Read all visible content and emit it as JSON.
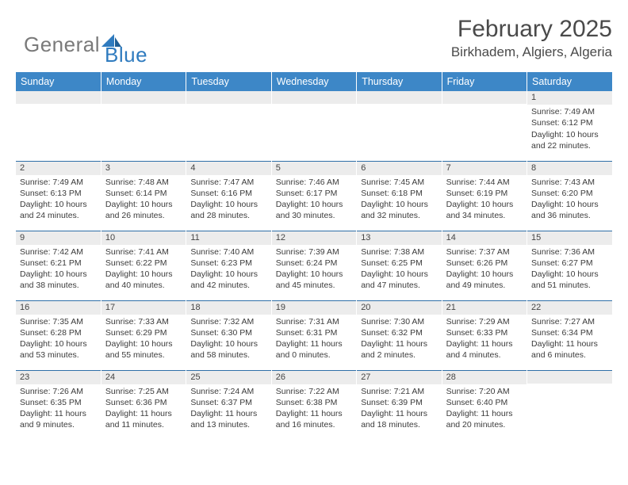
{
  "logo": {
    "text1": "General",
    "text2": "Blue"
  },
  "title": "February 2025",
  "location": "Birkhadem, Algiers, Algeria",
  "colors": {
    "header_bg": "#3d87c7",
    "header_text": "#ffffff",
    "row_border": "#2f6fa8",
    "daynum_bg": "#ececec",
    "body_text": "#3b3b3b",
    "logo_gray": "#7a7a7a",
    "logo_blue": "#2f7bbf"
  },
  "day_headers": [
    "Sunday",
    "Monday",
    "Tuesday",
    "Wednesday",
    "Thursday",
    "Friday",
    "Saturday"
  ],
  "weeks": [
    [
      {
        "day": "",
        "sunrise": "",
        "sunset": "",
        "daylight": ""
      },
      {
        "day": "",
        "sunrise": "",
        "sunset": "",
        "daylight": ""
      },
      {
        "day": "",
        "sunrise": "",
        "sunset": "",
        "daylight": ""
      },
      {
        "day": "",
        "sunrise": "",
        "sunset": "",
        "daylight": ""
      },
      {
        "day": "",
        "sunrise": "",
        "sunset": "",
        "daylight": ""
      },
      {
        "day": "",
        "sunrise": "",
        "sunset": "",
        "daylight": ""
      },
      {
        "day": "1",
        "sunrise": "Sunrise: 7:49 AM",
        "sunset": "Sunset: 6:12 PM",
        "daylight": "Daylight: 10 hours and 22 minutes."
      }
    ],
    [
      {
        "day": "2",
        "sunrise": "Sunrise: 7:49 AM",
        "sunset": "Sunset: 6:13 PM",
        "daylight": "Daylight: 10 hours and 24 minutes."
      },
      {
        "day": "3",
        "sunrise": "Sunrise: 7:48 AM",
        "sunset": "Sunset: 6:14 PM",
        "daylight": "Daylight: 10 hours and 26 minutes."
      },
      {
        "day": "4",
        "sunrise": "Sunrise: 7:47 AM",
        "sunset": "Sunset: 6:16 PM",
        "daylight": "Daylight: 10 hours and 28 minutes."
      },
      {
        "day": "5",
        "sunrise": "Sunrise: 7:46 AM",
        "sunset": "Sunset: 6:17 PM",
        "daylight": "Daylight: 10 hours and 30 minutes."
      },
      {
        "day": "6",
        "sunrise": "Sunrise: 7:45 AM",
        "sunset": "Sunset: 6:18 PM",
        "daylight": "Daylight: 10 hours and 32 minutes."
      },
      {
        "day": "7",
        "sunrise": "Sunrise: 7:44 AM",
        "sunset": "Sunset: 6:19 PM",
        "daylight": "Daylight: 10 hours and 34 minutes."
      },
      {
        "day": "8",
        "sunrise": "Sunrise: 7:43 AM",
        "sunset": "Sunset: 6:20 PM",
        "daylight": "Daylight: 10 hours and 36 minutes."
      }
    ],
    [
      {
        "day": "9",
        "sunrise": "Sunrise: 7:42 AM",
        "sunset": "Sunset: 6:21 PM",
        "daylight": "Daylight: 10 hours and 38 minutes."
      },
      {
        "day": "10",
        "sunrise": "Sunrise: 7:41 AM",
        "sunset": "Sunset: 6:22 PM",
        "daylight": "Daylight: 10 hours and 40 minutes."
      },
      {
        "day": "11",
        "sunrise": "Sunrise: 7:40 AM",
        "sunset": "Sunset: 6:23 PM",
        "daylight": "Daylight: 10 hours and 42 minutes."
      },
      {
        "day": "12",
        "sunrise": "Sunrise: 7:39 AM",
        "sunset": "Sunset: 6:24 PM",
        "daylight": "Daylight: 10 hours and 45 minutes."
      },
      {
        "day": "13",
        "sunrise": "Sunrise: 7:38 AM",
        "sunset": "Sunset: 6:25 PM",
        "daylight": "Daylight: 10 hours and 47 minutes."
      },
      {
        "day": "14",
        "sunrise": "Sunrise: 7:37 AM",
        "sunset": "Sunset: 6:26 PM",
        "daylight": "Daylight: 10 hours and 49 minutes."
      },
      {
        "day": "15",
        "sunrise": "Sunrise: 7:36 AM",
        "sunset": "Sunset: 6:27 PM",
        "daylight": "Daylight: 10 hours and 51 minutes."
      }
    ],
    [
      {
        "day": "16",
        "sunrise": "Sunrise: 7:35 AM",
        "sunset": "Sunset: 6:28 PM",
        "daylight": "Daylight: 10 hours and 53 minutes."
      },
      {
        "day": "17",
        "sunrise": "Sunrise: 7:33 AM",
        "sunset": "Sunset: 6:29 PM",
        "daylight": "Daylight: 10 hours and 55 minutes."
      },
      {
        "day": "18",
        "sunrise": "Sunrise: 7:32 AM",
        "sunset": "Sunset: 6:30 PM",
        "daylight": "Daylight: 10 hours and 58 minutes."
      },
      {
        "day": "19",
        "sunrise": "Sunrise: 7:31 AM",
        "sunset": "Sunset: 6:31 PM",
        "daylight": "Daylight: 11 hours and 0 minutes."
      },
      {
        "day": "20",
        "sunrise": "Sunrise: 7:30 AM",
        "sunset": "Sunset: 6:32 PM",
        "daylight": "Daylight: 11 hours and 2 minutes."
      },
      {
        "day": "21",
        "sunrise": "Sunrise: 7:29 AM",
        "sunset": "Sunset: 6:33 PM",
        "daylight": "Daylight: 11 hours and 4 minutes."
      },
      {
        "day": "22",
        "sunrise": "Sunrise: 7:27 AM",
        "sunset": "Sunset: 6:34 PM",
        "daylight": "Daylight: 11 hours and 6 minutes."
      }
    ],
    [
      {
        "day": "23",
        "sunrise": "Sunrise: 7:26 AM",
        "sunset": "Sunset: 6:35 PM",
        "daylight": "Daylight: 11 hours and 9 minutes."
      },
      {
        "day": "24",
        "sunrise": "Sunrise: 7:25 AM",
        "sunset": "Sunset: 6:36 PM",
        "daylight": "Daylight: 11 hours and 11 minutes."
      },
      {
        "day": "25",
        "sunrise": "Sunrise: 7:24 AM",
        "sunset": "Sunset: 6:37 PM",
        "daylight": "Daylight: 11 hours and 13 minutes."
      },
      {
        "day": "26",
        "sunrise": "Sunrise: 7:22 AM",
        "sunset": "Sunset: 6:38 PM",
        "daylight": "Daylight: 11 hours and 16 minutes."
      },
      {
        "day": "27",
        "sunrise": "Sunrise: 7:21 AM",
        "sunset": "Sunset: 6:39 PM",
        "daylight": "Daylight: 11 hours and 18 minutes."
      },
      {
        "day": "28",
        "sunrise": "Sunrise: 7:20 AM",
        "sunset": "Sunset: 6:40 PM",
        "daylight": "Daylight: 11 hours and 20 minutes."
      },
      {
        "day": "",
        "sunrise": "",
        "sunset": "",
        "daylight": ""
      }
    ]
  ]
}
